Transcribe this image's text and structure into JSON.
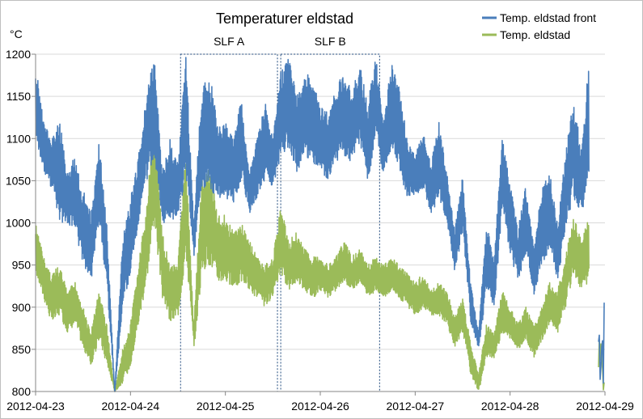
{
  "chart_data": {
    "type": "line",
    "title": "Temperaturer eldstad",
    "ylabel": "°C",
    "xlabel": "",
    "ylim": [
      800,
      1200
    ],
    "yticks": [
      800,
      850,
      900,
      950,
      1000,
      1050,
      1100,
      1150,
      1200
    ],
    "xlim": [
      "2012-04-23",
      "2012-04-29"
    ],
    "xticks": [
      "2012-04-23",
      "2012-04-24",
      "2012-04-25",
      "2012-04-26",
      "2012-04-27",
      "2012-04-28",
      "2012-04-29"
    ],
    "grid": "horizontal",
    "legend_position": "top-right",
    "annotations": [
      {
        "label": "SLF A",
        "x_start": "2012-04-24 12:40",
        "x_end": "2012-04-25 13:10",
        "y_range": [
          800,
          1200
        ]
      },
      {
        "label": "SLF B",
        "x_start": "2012-04-25 14:00",
        "x_end": "2012-04-26 15:00",
        "y_range": [
          800,
          1200
        ]
      }
    ],
    "series": [
      {
        "name": "Temp. eldstad front",
        "color": "#4a7ebb",
        "x": [
          "2012-04-23 00:00",
          "2012-04-23 02:00",
          "2012-04-23 04:00",
          "2012-04-23 06:00",
          "2012-04-23 08:00",
          "2012-04-23 10:00",
          "2012-04-23 12:00",
          "2012-04-23 14:00",
          "2012-04-23 16:00",
          "2012-04-23 18:00",
          "2012-04-23 20:00",
          "2012-04-23 22:00",
          "2012-04-24 00:00",
          "2012-04-24 02:00",
          "2012-04-24 04:00",
          "2012-04-24 06:00",
          "2012-04-24 08:00",
          "2012-04-24 10:00",
          "2012-04-24 12:00",
          "2012-04-24 14:00",
          "2012-04-24 16:00",
          "2012-04-24 18:00",
          "2012-04-24 20:00",
          "2012-04-24 22:00",
          "2012-04-25 00:00",
          "2012-04-25 02:00",
          "2012-04-25 04:00",
          "2012-04-25 06:00",
          "2012-04-25 08:00",
          "2012-04-25 10:00",
          "2012-04-25 12:00",
          "2012-04-25 14:00",
          "2012-04-25 16:00",
          "2012-04-25 18:00",
          "2012-04-25 20:00",
          "2012-04-25 22:00",
          "2012-04-26 00:00",
          "2012-04-26 02:00",
          "2012-04-26 04:00",
          "2012-04-26 06:00",
          "2012-04-26 08:00",
          "2012-04-26 10:00",
          "2012-04-26 12:00",
          "2012-04-26 14:00",
          "2012-04-26 16:00",
          "2012-04-26 18:00",
          "2012-04-26 20:00",
          "2012-04-26 22:00",
          "2012-04-27 00:00",
          "2012-04-27 02:00",
          "2012-04-27 04:00",
          "2012-04-27 06:00",
          "2012-04-27 08:00",
          "2012-04-27 10:00",
          "2012-04-27 12:00",
          "2012-04-27 14:00",
          "2012-04-27 16:00",
          "2012-04-27 18:00",
          "2012-04-27 20:00",
          "2012-04-27 22:00",
          "2012-04-28 00:00",
          "2012-04-28 02:00",
          "2012-04-28 04:00",
          "2012-04-28 06:00",
          "2012-04-28 08:00",
          "2012-04-28 10:00",
          "2012-04-28 12:00",
          "2012-04-28 14:00",
          "2012-04-28 16:00",
          "2012-04-28 18:00",
          "2012-04-28 20:00",
          "2012-04-28 22:00",
          "2012-04-29 00:00"
        ],
        "y": [
          1190,
          1120,
          1100,
          1130,
          1060,
          1080,
          1040,
          1010,
          1100,
          1000,
          800,
          980,
          1030,
          1080,
          1150,
          1200,
          1060,
          1100,
          1070,
          1200,
          1000,
          1160,
          1180,
          1120,
          1120,
          1100,
          1150,
          1060,
          1100,
          1150,
          1100,
          1180,
          1200,
          1150,
          1180,
          1170,
          1140,
          1130,
          1160,
          1180,
          1160,
          1190,
          1140,
          1200,
          1120,
          1190,
          1160,
          1100,
          1080,
          1110,
          1070,
          1120,
          1060,
          990,
          1060,
          930,
          870,
          1000,
          960,
          1100,
          1050,
          990,
          1050,
          970,
          1040,
          1060,
          1000,
          1080,
          1150,
          1090,
          1200,
          null,
          920
        ],
        "y_low": [
          1100,
          1060,
          1040,
          1000,
          1000,
          990,
          950,
          930,
          1000,
          920,
          800,
          900,
          940,
          1000,
          1050,
          1080,
          1000,
          1000,
          1010,
          1050,
          960,
          1040,
          1040,
          1030,
          1030,
          1020,
          1050,
          1010,
          1030,
          1050,
          1040,
          1080,
          1090,
          1060,
          1080,
          1070,
          1060,
          1050,
          1070,
          1080,
          1070,
          1090,
          1050,
          1100,
          1050,
          1090,
          1060,
          1030,
          1030,
          1040,
          1010,
          1030,
          1000,
          940,
          990,
          880,
          850,
          920,
          900,
          1020,
          960,
          930,
          960,
          910,
          950,
          970,
          930,
          990,
          1030,
          1010,
          1050,
          null,
          800
        ]
      },
      {
        "name": "Temp. eldstad",
        "color": "#9bbb59",
        "x": [
          "2012-04-23 00:00",
          "2012-04-23 02:00",
          "2012-04-23 04:00",
          "2012-04-23 06:00",
          "2012-04-23 08:00",
          "2012-04-23 10:00",
          "2012-04-23 12:00",
          "2012-04-23 14:00",
          "2012-04-23 16:00",
          "2012-04-23 18:00",
          "2012-04-23 20:00",
          "2012-04-23 22:00",
          "2012-04-24 00:00",
          "2012-04-24 02:00",
          "2012-04-24 04:00",
          "2012-04-24 06:00",
          "2012-04-24 08:00",
          "2012-04-24 10:00",
          "2012-04-24 12:00",
          "2012-04-24 14:00",
          "2012-04-24 16:00",
          "2012-04-24 18:00",
          "2012-04-24 20:00",
          "2012-04-24 22:00",
          "2012-04-25 00:00",
          "2012-04-25 02:00",
          "2012-04-25 04:00",
          "2012-04-25 06:00",
          "2012-04-25 08:00",
          "2012-04-25 10:00",
          "2012-04-25 12:00",
          "2012-04-25 14:00",
          "2012-04-25 16:00",
          "2012-04-25 18:00",
          "2012-04-25 20:00",
          "2012-04-25 22:00",
          "2012-04-26 00:00",
          "2012-04-26 02:00",
          "2012-04-26 04:00",
          "2012-04-26 06:00",
          "2012-04-26 08:00",
          "2012-04-26 10:00",
          "2012-04-26 12:00",
          "2012-04-26 14:00",
          "2012-04-26 16:00",
          "2012-04-26 18:00",
          "2012-04-26 20:00",
          "2012-04-26 22:00",
          "2012-04-27 00:00",
          "2012-04-27 02:00",
          "2012-04-27 04:00",
          "2012-04-27 06:00",
          "2012-04-27 08:00",
          "2012-04-27 10:00",
          "2012-04-27 12:00",
          "2012-04-27 14:00",
          "2012-04-27 16:00",
          "2012-04-27 18:00",
          "2012-04-27 20:00",
          "2012-04-27 22:00",
          "2012-04-28 00:00",
          "2012-04-28 02:00",
          "2012-04-28 04:00",
          "2012-04-28 06:00",
          "2012-04-28 08:00",
          "2012-04-28 10:00",
          "2012-04-28 12:00",
          "2012-04-28 14:00",
          "2012-04-28 16:00",
          "2012-04-28 18:00",
          "2012-04-28 20:00",
          "2012-04-28 22:00",
          "2012-04-29 00:00"
        ],
        "y": [
          1000,
          960,
          940,
          950,
          920,
          930,
          900,
          870,
          920,
          880,
          800,
          850,
          880,
          950,
          1020,
          1140,
          990,
          950,
          960,
          1080,
          880,
          1050,
          1070,
          1010,
          1010,
          990,
          1000,
          980,
          960,
          950,
          960,
          1020,
          980,
          990,
          970,
          960,
          960,
          950,
          960,
          980,
          960,
          970,
          950,
          960,
          950,
          960,
          950,
          940,
          930,
          940,
          920,
          930,
          920,
          890,
          910,
          860,
          820,
          880,
          870,
          920,
          900,
          880,
          900,
          880,
          900,
          930,
          920,
          960,
          1010,
          980,
          1010,
          null,
          870
        ],
        "y_low": [
          940,
          910,
          880,
          890,
          870,
          880,
          850,
          830,
          860,
          830,
          800,
          810,
          830,
          880,
          930,
          1000,
          910,
          880,
          890,
          960,
          850,
          940,
          950,
          930,
          930,
          920,
          930,
          920,
          910,
          900,
          910,
          940,
          920,
          930,
          920,
          910,
          920,
          910,
          920,
          930,
          920,
          930,
          910,
          920,
          910,
          920,
          910,
          900,
          890,
          900,
          890,
          890,
          880,
          850,
          870,
          820,
          800,
          840,
          840,
          870,
          860,
          850,
          860,
          840,
          860,
          880,
          870,
          900,
          940,
          920,
          930,
          null,
          800
        ]
      }
    ]
  }
}
